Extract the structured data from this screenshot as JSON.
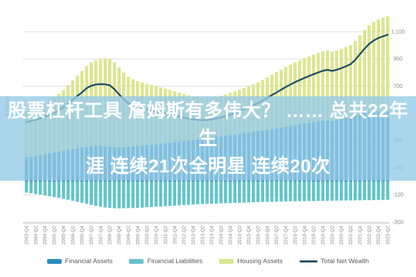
{
  "overlay_banner": {
    "line1": "股票杠杆工具 詹姆斯有多伟大？ …… 总共22年生",
    "line2": "涯 连续21次全明星 连续20次",
    "bg_color": "rgba(150,203,229,0.8)",
    "text_color": "#ffffff"
  },
  "colors": {
    "gridline": "#dcdcdc",
    "axis_line": "#c8c8c8",
    "tick_text": "#8c8c8c",
    "legend_text": "#595959",
    "background": "#ffffff"
  },
  "chart_data": {
    "type": "bar",
    "subtype": "stacked-bars-with-line",
    "ylabel": "€ Billion",
    "y_ticks": [
      1100,
      900,
      700,
      500,
      300,
      100,
      -100,
      -300
    ],
    "y_tick_labels": [
      "1,100",
      "900",
      "700",
      "500",
      "300",
      "100",
      "-100",
      "-300"
    ],
    "ylim": [
      -300,
      1300
    ],
    "grid": true,
    "legend_position": "bottom",
    "n_bars": 79,
    "ticks_every_n_bars": 2,
    "x_tick_labels": [
      "2003-Q4",
      "2004-Q2",
      "2004-Q4",
      "2005-Q2",
      "2005-Q4",
      "2006-Q2",
      "2006-Q4",
      "2007-Q2",
      "2007-Q4",
      "2008-Q2",
      "2008-Q4",
      "2009-Q2",
      "2009-Q4",
      "2010-Q2",
      "2010-Q4",
      "2011-Q2",
      "2011-Q4",
      "2012-Q2",
      "2012-Q4",
      "2013-Q2",
      "2013-Q4",
      "2014-Q2",
      "2014-Q4",
      "2015-Q2",
      "2015-Q4",
      "2016-Q2",
      "2016-Q4",
      "2017-Q2",
      "2017-Q4",
      "2018-Q2",
      "2018-Q4",
      "2019-Q2",
      "2019-Q4",
      "2020-Q2",
      "2020-Q4",
      "2021-Q2",
      "2021-Q4",
      "2022-Q2",
      "2022-Q4",
      "2023-Q2"
    ],
    "series": [
      {
        "name": "Financial Assets",
        "type": "bar",
        "stack": "assets",
        "color": "#2b8cbd",
        "values": [
          178,
          182,
          186,
          194,
          200,
          206,
          212,
          220,
          227,
          233,
          239,
          244,
          249,
          253,
          257,
          260,
          262,
          259,
          255,
          252,
          250,
          252,
          255,
          258,
          261,
          263,
          266,
          269,
          273,
          277,
          281,
          285,
          289,
          293,
          297,
          301,
          305,
          309,
          314,
          319,
          324,
          328,
          332,
          336,
          340,
          344,
          349,
          354,
          359,
          364,
          369,
          374,
          379,
          384,
          390,
          396,
          402,
          408,
          414,
          420,
          426,
          431,
          436,
          441,
          446,
          448,
          444,
          452,
          460,
          470,
          480,
          488,
          496,
          506,
          514,
          519,
          514,
          507,
          512
        ]
      },
      {
        "name": "Financial Liabilities",
        "type": "bar",
        "stack": "liabilities",
        "color": "#63c4cc",
        "values": [
          -82,
          -87,
          -92,
          -97,
          -103,
          -109,
          -115,
          -121,
          -128,
          -135,
          -142,
          -149,
          -157,
          -164,
          -172,
          -179,
          -186,
          -191,
          -195,
          -197,
          -198,
          -197,
          -196,
          -195,
          -194,
          -192,
          -190,
          -188,
          -186,
          -184,
          -182,
          -180,
          -178,
          -176,
          -174,
          -172,
          -170,
          -168,
          -167,
          -165,
          -164,
          -163,
          -161,
          -160,
          -159,
          -158,
          -157,
          -156,
          -154,
          -153,
          -152,
          -151,
          -150,
          -150,
          -149,
          -148,
          -147,
          -146,
          -146,
          -145,
          -145,
          -144,
          -144,
          -143,
          -143,
          -142,
          -142,
          -141,
          -141,
          -140,
          -140,
          -139,
          -139,
          -138,
          -138,
          -137,
          -136,
          -136,
          -135
        ]
      },
      {
        "name": "Housing Assets",
        "type": "bar",
        "stack": "assets",
        "color": "#dce590",
        "values": [
          340,
          349,
          358,
          365,
          378,
          391,
          405,
          423,
          446,
          474,
          503,
          533,
          563,
          596,
          618,
          631,
          639,
          646,
          646,
          623,
          588,
          549,
          515,
          493,
          476,
          464,
          452,
          440,
          427,
          414,
          401,
          387,
          373,
          359,
          345,
          332,
          321,
          311,
          303,
          297,
          295,
          297,
          299,
          304,
          310,
          317,
          324,
          332,
          340,
          349,
          359,
          371,
          385,
          400,
          413,
          426,
          439,
          450,
          461,
          470,
          479,
          487,
          496,
          503,
          510,
          514,
          510,
          509,
          513,
          516,
          522,
          544,
          578,
          607,
          634,
          654,
          676,
          695,
          701
        ]
      },
      {
        "name": "Total Net Wealth",
        "type": "line",
        "color": "#1d4e66",
        "values": [
          436,
          444,
          452,
          462,
          475,
          488,
          502,
          522,
          545,
          572,
          600,
          628,
          655,
          685,
          703,
          712,
          715,
          714,
          706,
          678,
          640,
          604,
          574,
          556,
          543,
          535,
          528,
          521,
          514,
          507,
          500,
          492,
          484,
          476,
          468,
          461,
          456,
          452,
          450,
          451,
          455,
          462,
          470,
          480,
          491,
          503,
          516,
          530,
          545,
          560,
          576,
          594,
          614,
          634,
          654,
          674,
          694,
          712,
          729,
          745,
          760,
          774,
          788,
          801,
          813,
          820,
          812,
          820,
          832,
          846,
          862,
          893,
          935,
          975,
          1010,
          1036,
          1054,
          1066,
          1078
        ]
      }
    ]
  }
}
